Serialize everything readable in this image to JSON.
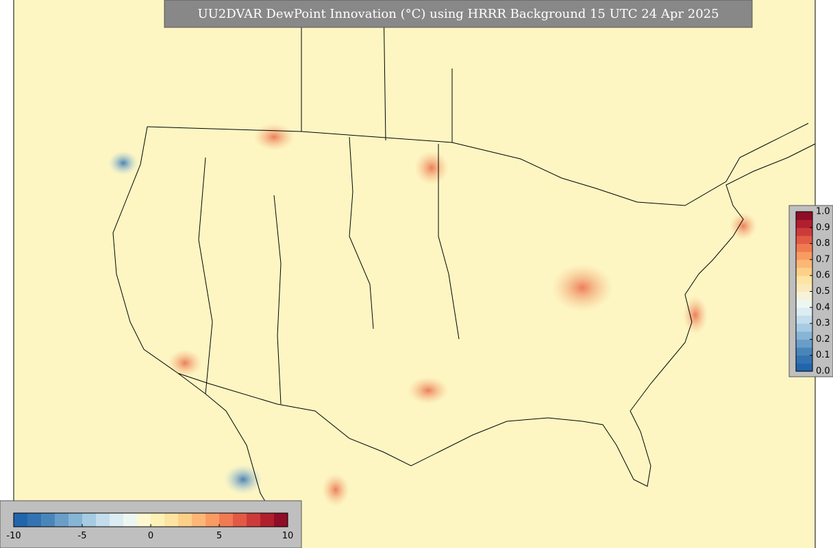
{
  "map": {
    "title": "UU2DVAR DewPoint Innovation (°C) using HRRR Background 15 UTC 24 Apr 2025",
    "background_color": "#fdf6c3",
    "colorbar_horizontal": {
      "lim": [
        -10,
        10
      ],
      "ticks": [
        -10,
        -5,
        0,
        5,
        10
      ],
      "colors": [
        "#2166ac",
        "#3473b1",
        "#4a85ba",
        "#6a9ec9",
        "#86b5d6",
        "#a6cbe2",
        "#c3dded",
        "#dbecf2",
        "#eef6f2",
        "#fdf8cf",
        "#fef1b5",
        "#fde4a0",
        "#fdd08a",
        "#fcb777",
        "#f99b63",
        "#f07b52",
        "#e25a44",
        "#cc3b3a",
        "#b01f2e",
        "#8f0d26"
      ]
    },
    "colorbar_vertical": {
      "lim": [
        0,
        1
      ],
      "ticks": [
        {
          "value": 0,
          "label": "0.0"
        },
        0.1,
        0.2,
        0.3,
        0.4,
        0.5,
        0.6,
        0.7,
        0.8,
        0.9,
        {
          "value": 1,
          "label": "1.0"
        }
      ],
      "colors": [
        "#2166ac",
        "#3473b1",
        "#4a85ba",
        "#6a9ec9",
        "#86b5d6",
        "#a6cbe2",
        "#c3dded",
        "#dbecf2",
        "#eef6f2",
        "#f7f2da",
        "#fbe8bd",
        "#fde4a0",
        "#fdd08a",
        "#fcb777",
        "#f99b63",
        "#f07b52",
        "#e25a44",
        "#cc3b3a",
        "#b01f2e",
        "#8f0d26"
      ]
    }
  }
}
